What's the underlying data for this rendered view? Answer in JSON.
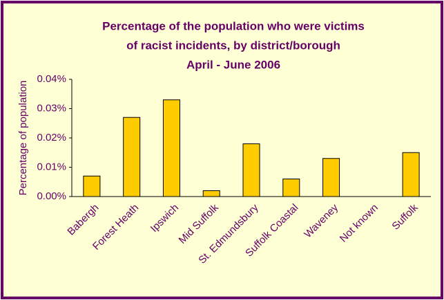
{
  "chart_data": {
    "type": "bar",
    "title": [
      "Percentage of the population who were victims",
      "of racist incidents, by district/borough",
      "April - June 2006"
    ],
    "y_label": "Percentage of population",
    "categories": [
      "Babergh",
      "Forest Heath",
      "Ipswich",
      "Mid Suffolk",
      "St. Edmundsbury",
      "Suffolk Coastal",
      "Waveney",
      "Not known",
      "Suffolk"
    ],
    "values": [
      0.007,
      0.027,
      0.033,
      0.002,
      0.018,
      0.006,
      0.013,
      0,
      0.015
    ],
    "color": "#ffcc00",
    "ylim": [
      0,
      0.04
    ],
    "yticks": [
      {
        "value": 0,
        "label": "0.00%"
      },
      {
        "value": 0.01,
        "label": "0.01%"
      },
      {
        "value": 0.02,
        "label": "0.02%"
      },
      {
        "value": 0.03,
        "label": "0.03%"
      },
      {
        "value": 0.04,
        "label": "0.04%"
      }
    ],
    "grid": false
  }
}
